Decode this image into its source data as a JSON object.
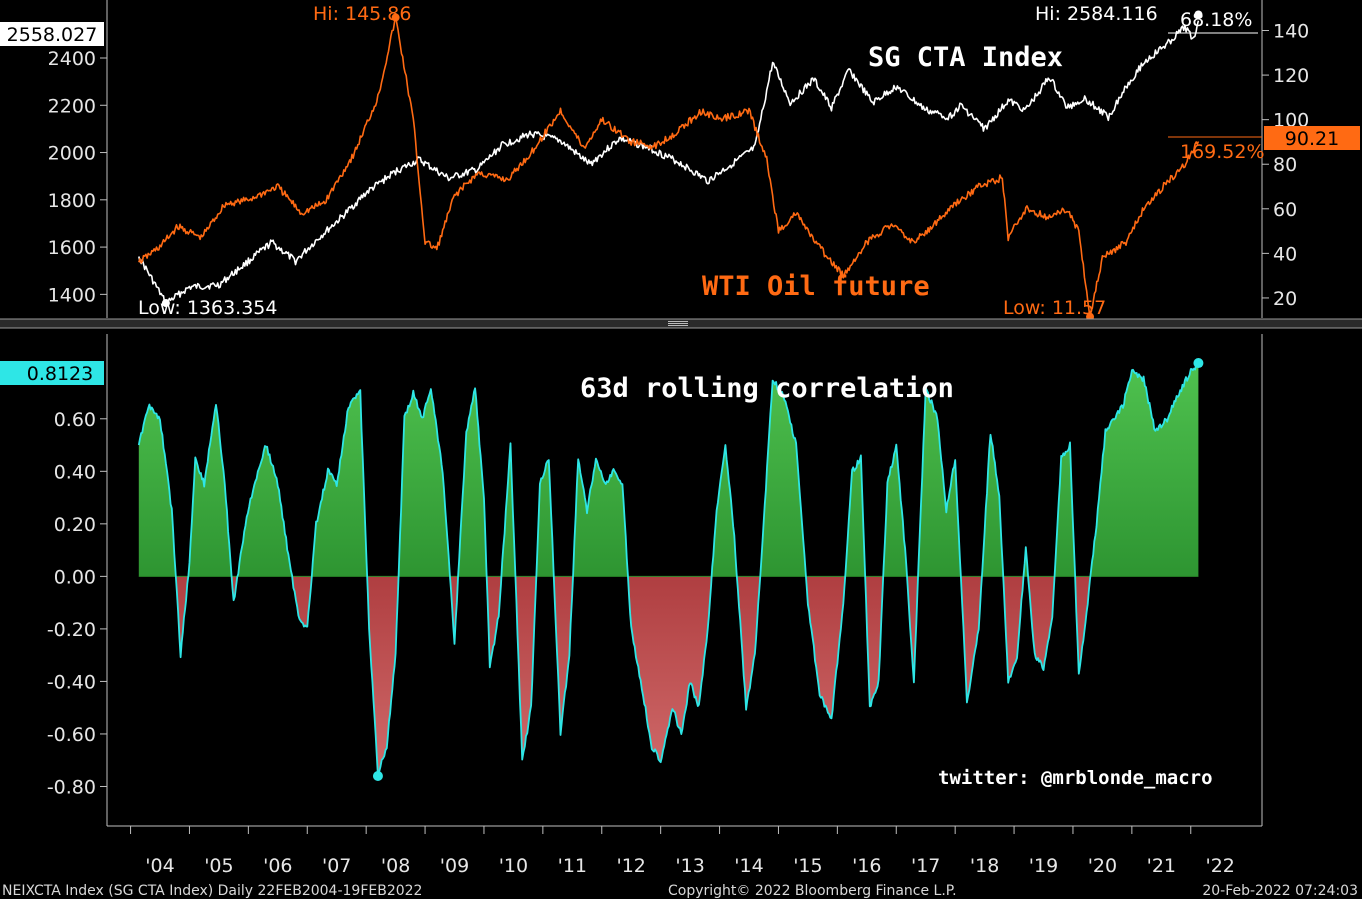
{
  "chart_data": [
    {
      "type": "line",
      "panel": "top",
      "title": "SG CTA Index / WTI Oil future",
      "x_years": [
        "'04",
        "'05",
        "'06",
        "'07",
        "'08",
        "'09",
        "'10",
        "'11",
        "'12",
        "'13",
        "'14",
        "'15",
        "'16",
        "'17",
        "'18",
        "'19",
        "'20",
        "'21",
        "'22"
      ],
      "series": [
        {
          "name": "SG CTA Index",
          "label": "SG CTA Index",
          "axis": "left",
          "color": "#ffffff",
          "x": [
            2004.14,
            2004.6,
            2005.0,
            2005.5,
            2006.0,
            2006.4,
            2006.8,
            2007.2,
            2007.6,
            2008.0,
            2008.5,
            2008.9,
            2009.4,
            2009.9,
            2010.3,
            2010.8,
            2011.3,
            2011.8,
            2012.3,
            2012.8,
            2013.3,
            2013.8,
            2014.2,
            2014.6,
            2014.9,
            2015.2,
            2015.6,
            2015.9,
            2016.2,
            2016.6,
            2017.0,
            2017.5,
            2017.9,
            2018.1,
            2018.5,
            2018.9,
            2019.2,
            2019.6,
            2019.9,
            2020.2,
            2020.6,
            2020.9,
            2021.2,
            2021.6,
            2021.9,
            2022.05,
            2022.13
          ],
          "y": [
            1560,
            1363,
            1430,
            1440,
            1540,
            1620,
            1540,
            1640,
            1730,
            1830,
            1920,
            1970,
            1890,
            1930,
            2030,
            2080,
            2050,
            1950,
            2060,
            2020,
            1960,
            1880,
            1950,
            2020,
            2380,
            2210,
            2310,
            2190,
            2350,
            2210,
            2280,
            2180,
            2150,
            2200,
            2100,
            2220,
            2180,
            2320,
            2190,
            2230,
            2150,
            2280,
            2380,
            2460,
            2530,
            2480,
            2558
          ]
        },
        {
          "name": "WTI Oil future",
          "label": "WTI Oil future",
          "axis": "right",
          "color": "#ff6a13",
          "x": [
            2004.14,
            2004.5,
            2004.8,
            2005.2,
            2005.6,
            2006.0,
            2006.5,
            2006.9,
            2007.3,
            2007.8,
            2008.2,
            2008.5,
            2008.8,
            2009.0,
            2009.2,
            2009.5,
            2009.9,
            2010.4,
            2010.8,
            2011.3,
            2011.7,
            2012.0,
            2012.5,
            2012.9,
            2013.3,
            2013.7,
            2014.0,
            2014.5,
            2014.8,
            2015.0,
            2015.3,
            2015.6,
            2015.9,
            2016.1,
            2016.5,
            2016.9,
            2017.3,
            2017.6,
            2018.0,
            2018.4,
            2018.8,
            2018.9,
            2019.2,
            2019.6,
            2019.9,
            2020.1,
            2020.29,
            2020.5,
            2020.9,
            2021.2,
            2021.6,
            2021.9,
            2022.13
          ],
          "y": [
            36,
            43,
            52,
            47,
            62,
            64,
            70,
            58,
            63,
            85,
            110,
            145.86,
            100,
            45,
            42,
            66,
            76,
            73,
            85,
            104,
            87,
            100,
            90,
            88,
            95,
            104,
            100,
            104,
            82,
            50,
            58,
            46,
            36,
            30,
            45,
            53,
            45,
            52,
            62,
            70,
            74,
            47,
            60,
            56,
            60,
            50,
            11.57,
            38,
            45,
            60,
            72,
            80,
            90.21
          ]
        }
      ],
      "left_axis": {
        "ticks": [
          "1400",
          "1600",
          "1800",
          "2000",
          "2200",
          "2400"
        ],
        "ylim": [
          1300,
          2620
        ]
      },
      "right_axis": {
        "ticks": [
          "20",
          "40",
          "60",
          "80",
          "100",
          "120",
          "140"
        ],
        "ylim": [
          11,
          151
        ]
      },
      "annotations": {
        "cta_last": "2558.027",
        "cta_high": "Hi: 2584.116",
        "cta_change": "68.18%",
        "cta_low": "Low: 1363.354",
        "oil_high": "Hi: 145.86",
        "oil_last": "90.21",
        "oil_change": "169.52%",
        "oil_low": "Low: 11.57"
      },
      "labels": {
        "cta": "SG CTA Index",
        "oil": "WTI Oil future"
      }
    },
    {
      "type": "area",
      "panel": "bottom",
      "title": "63d rolling correlation",
      "series_color": "#2ee6e6",
      "positive_fill": "#1f9e2a",
      "negative_fill": "#b3161d",
      "x": [
        2004.14,
        2004.3,
        2004.5,
        2004.7,
        2004.85,
        2005.0,
        2005.1,
        2005.25,
        2005.45,
        2005.6,
        2005.75,
        2005.95,
        2006.1,
        2006.3,
        2006.5,
        2006.7,
        2006.85,
        2007.0,
        2007.15,
        2007.35,
        2007.5,
        2007.7,
        2007.9,
        2008.05,
        2008.2,
        2008.35,
        2008.5,
        2008.65,
        2008.8,
        2008.95,
        2009.1,
        2009.3,
        2009.5,
        2009.7,
        2009.85,
        2010.0,
        2010.1,
        2010.25,
        2010.45,
        2010.65,
        2010.8,
        2010.95,
        2011.1,
        2011.3,
        2011.45,
        2011.6,
        2011.75,
        2011.9,
        2012.05,
        2012.2,
        2012.35,
        2012.5,
        2012.7,
        2012.85,
        2013.0,
        2013.2,
        2013.35,
        2013.5,
        2013.65,
        2013.8,
        2013.95,
        2014.1,
        2014.25,
        2014.45,
        2014.6,
        2014.75,
        2014.9,
        2015.1,
        2015.3,
        2015.5,
        2015.7,
        2015.9,
        2016.1,
        2016.25,
        2016.4,
        2016.55,
        2016.7,
        2016.85,
        2017.0,
        2017.15,
        2017.3,
        2017.5,
        2017.7,
        2017.85,
        2018.0,
        2018.2,
        2018.4,
        2018.6,
        2018.75,
        2018.9,
        2019.05,
        2019.2,
        2019.35,
        2019.5,
        2019.65,
        2019.8,
        2019.95,
        2020.1,
        2020.25,
        2020.4,
        2020.55,
        2020.7,
        2020.85,
        2021.0,
        2021.2,
        2021.4,
        2021.6,
        2021.8,
        2022.0,
        2022.13
      ],
      "y": [
        0.5,
        0.65,
        0.6,
        0.25,
        -0.3,
        0.05,
        0.45,
        0.35,
        0.66,
        0.35,
        -0.1,
        0.2,
        0.35,
        0.5,
        0.35,
        0.05,
        -0.15,
        -0.2,
        0.2,
        0.4,
        0.35,
        0.65,
        0.7,
        -0.2,
        -0.75,
        -0.65,
        -0.3,
        0.6,
        0.7,
        0.6,
        0.72,
        0.4,
        -0.25,
        0.55,
        0.72,
        0.3,
        -0.35,
        -0.15,
        0.5,
        -0.7,
        -0.5,
        0.35,
        0.45,
        -0.6,
        -0.3,
        0.45,
        0.25,
        0.45,
        0.35,
        0.4,
        0.35,
        -0.2,
        -0.45,
        -0.65,
        -0.7,
        -0.5,
        -0.6,
        -0.4,
        -0.5,
        -0.2,
        0.25,
        0.5,
        0.15,
        -0.5,
        -0.3,
        0.2,
        0.75,
        0.68,
        0.5,
        -0.1,
        -0.45,
        -0.55,
        -0.1,
        0.4,
        0.45,
        -0.5,
        -0.4,
        0.35,
        0.5,
        0.1,
        -0.4,
        0.72,
        0.6,
        0.25,
        0.45,
        -0.48,
        -0.2,
        0.55,
        0.3,
        -0.4,
        -0.3,
        0.1,
        -0.3,
        -0.35,
        -0.15,
        0.45,
        0.5,
        -0.38,
        -0.1,
        0.2,
        0.55,
        0.6,
        0.65,
        0.78,
        0.75,
        0.55,
        0.6,
        0.7,
        0.78,
        0.8123
      ],
      "ylim": [
        -0.92,
        0.9
      ],
      "ticks": [
        "0.60",
        "0.40",
        "0.20",
        "0.00",
        "-0.20",
        "-0.40",
        "-0.60",
        "-0.80"
      ],
      "last_value": "0.8123"
    }
  ],
  "credit": "twitter: @mrblonde_macro",
  "footer": {
    "left": "NEIXCTA Index (SG CTA Index)  Daily 22FEB2004-19FEB2022",
    "center": "Copyright© 2022 Bloomberg Finance L.P.",
    "right": "20-Feb-2022 07:24:03"
  },
  "colors": {
    "background": "#000000",
    "cta": "#ffffff",
    "oil": "#ff6a13",
    "corr": "#2ee6e6",
    "pos": "#1f9e2a",
    "neg": "#b3161d",
    "axis": "#bfbfbf",
    "divider": "#8c8c8c"
  }
}
